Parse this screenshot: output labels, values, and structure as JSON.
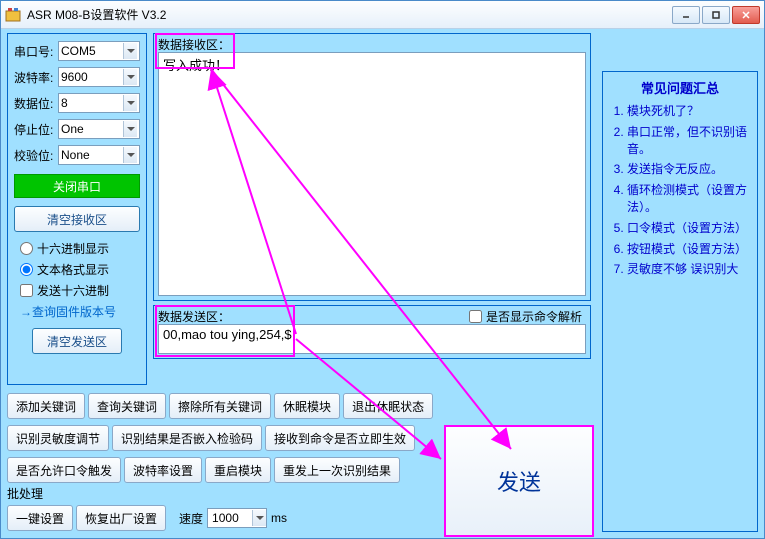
{
  "window": {
    "title": "ASR M08-B设置软件 V3.2"
  },
  "serial": {
    "port_label": "串口号:",
    "port_value": "COM5",
    "baud_label": "波特率:",
    "baud_value": "9600",
    "data_label": "数据位:",
    "data_value": "8",
    "stop_label": "停止位:",
    "stop_value": "One",
    "parity_label": "校验位:",
    "parity_value": "None",
    "close_btn": "关闭串口",
    "clear_recv_btn": "清空接收区",
    "radio_hex": "十六进制显示",
    "radio_text": "文本格式显示",
    "chk_send_hex": "发送十六进制",
    "link_version": "→查询固件版本号",
    "clear_send_btn": "清空发送区"
  },
  "recv": {
    "label": "数据接收区：",
    "content": "写入成功！"
  },
  "send": {
    "label": "数据发送区：",
    "chk_parse": "是否显示命令解析",
    "content": "00,mao tou ying,254,$"
  },
  "buttons": {
    "r1": [
      "添加关键词",
      "查询关键词",
      "擦除所有关键词",
      "休眠模块",
      "退出休眠状态"
    ],
    "r2": [
      "识别灵敏度调节",
      "识别结果是否嵌入检验码",
      "接收到命令是否立即生效"
    ],
    "r3": [
      "是否允许口令触发",
      "波特率设置",
      "重启模块",
      "重发上一次识别结果"
    ]
  },
  "batch": {
    "label": "批处理",
    "onekey": "一键设置",
    "restore": "恢复出厂设置",
    "speed_label": "速度",
    "speed_value": "1000",
    "unit": "ms"
  },
  "big_send": "发送",
  "faq": {
    "title": "常见问题汇总",
    "items": [
      "模块死机了？",
      "串口正常，但不识别语音。",
      "发送指令无反应。",
      "循环检测模式（设置方法）。",
      "口令模式（设置方法）",
      "按钮模式（设置方法）",
      "灵敏度不够 误识别大"
    ]
  },
  "colors": {
    "accent": "#a0e0ff",
    "border": "#0066cc",
    "highlight": "#ff00ff"
  }
}
